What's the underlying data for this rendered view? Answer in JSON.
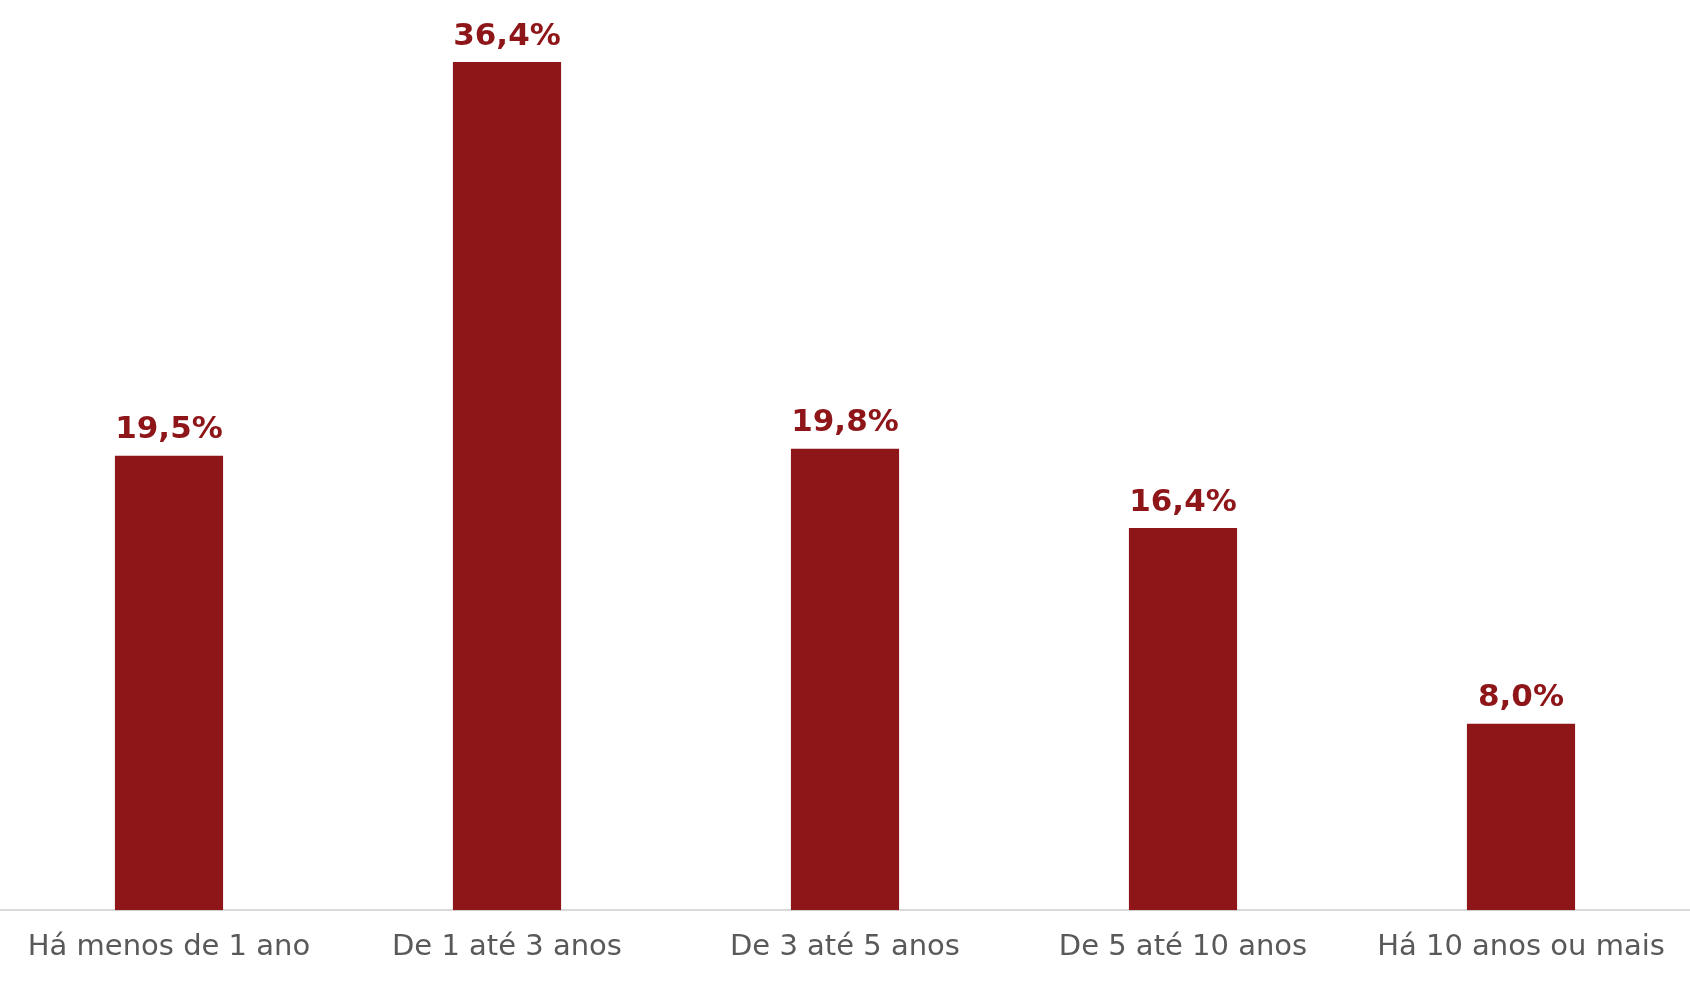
{
  "chart_data": {
    "type": "bar",
    "categories": [
      "Há menos de 1 ano",
      "De 1 até 3 anos",
      "De 3 até 5 anos",
      "De 5 até 10 anos",
      "Há 10 anos ou mais"
    ],
    "values": [
      19.5,
      36.4,
      19.8,
      16.4,
      8.0
    ],
    "value_labels": [
      "19,5%",
      "36,4%",
      "19,8%",
      "16,4%",
      "8,0%"
    ],
    "color": "#8e1619",
    "grid": false,
    "legend": false
  }
}
